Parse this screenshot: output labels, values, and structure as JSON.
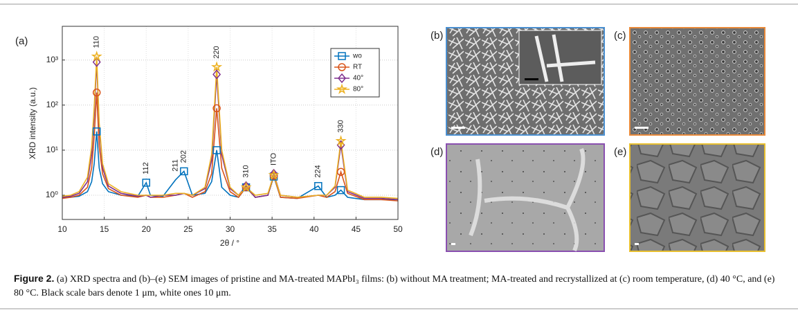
{
  "chart_data": {
    "type": "line",
    "panel_label": "(a)",
    "xlabel": "2θ / °",
    "ylabel": "XRD intensity (a.u.)",
    "x": [
      10,
      11,
      12,
      13,
      13.5,
      13.8,
      14.1,
      14.4,
      14.8,
      15.5,
      17,
      19,
      20,
      20.5,
      22,
      23.5,
      24.5,
      25.5,
      27,
      27.8,
      28.4,
      29,
      30,
      31,
      31.9,
      33,
      34.5,
      35.2,
      36,
      38,
      40.5,
      41.5,
      42.5,
      43.2,
      44,
      46,
      48,
      50
    ],
    "series": [
      {
        "name": "wo",
        "color": "#0072bd",
        "marker": "square",
        "values": [
          0.9,
          0.9,
          0.95,
          1.2,
          2,
          5,
          26,
          4,
          1.8,
          1.2,
          1,
          0.95,
          1.9,
          1,
          0.95,
          2.2,
          3.4,
          1,
          1.1,
          2,
          10,
          1.5,
          1,
          0.9,
          1.5,
          0.9,
          1,
          2.6,
          0.9,
          0.85,
          1.6,
          0.9,
          1,
          1.3,
          0.9,
          0.8,
          0.8,
          0.8
        ]
      },
      {
        "name": "RT",
        "color": "#d95319",
        "marker": "circle",
        "values": [
          0.85,
          0.9,
          1,
          1.5,
          4,
          20,
          190,
          12,
          3,
          1.4,
          1,
          0.9,
          1,
          0.9,
          0.9,
          1,
          1.1,
          0.9,
          1.2,
          3,
          85,
          4,
          1.2,
          0.9,
          1.5,
          0.9,
          1,
          2.7,
          0.9,
          0.85,
          1,
          0.9,
          1.2,
          3.3,
          1.1,
          0.8,
          0.8,
          0.75
        ]
      },
      {
        "name": "40°",
        "color": "#7e2f8e",
        "marker": "diamond",
        "values": [
          0.9,
          0.95,
          1.1,
          2,
          8,
          60,
          900,
          30,
          4,
          1.6,
          1.1,
          0.95,
          1,
          0.9,
          1,
          1,
          1.1,
          1,
          1.4,
          6,
          480,
          8,
          1.4,
          1,
          1.6,
          0.9,
          1,
          3,
          1,
          0.9,
          1,
          1,
          1.5,
          13,
          1.2,
          0.85,
          0.85,
          0.8
        ]
      },
      {
        "name": "80°",
        "color": "#edb120",
        "marker": "star",
        "values": [
          0.95,
          1,
          1.2,
          2.5,
          12,
          90,
          1200,
          40,
          5,
          1.8,
          1.2,
          1,
          1,
          1,
          1,
          1.1,
          1.1,
          1,
          1.5,
          8,
          700,
          10,
          1.5,
          1,
          1.5,
          1,
          1.1,
          2.8,
          1,
          0.9,
          1,
          1,
          1.6,
          16,
          1.3,
          0.9,
          0.9,
          0.85
        ]
      }
    ],
    "annotations": [
      {
        "text": "110",
        "x": 14.1
      },
      {
        "text": "112",
        "x": 20
      },
      {
        "text": "211",
        "x": 23.5
      },
      {
        "text": "202",
        "x": 24.5
      },
      {
        "text": "220",
        "x": 28.4
      },
      {
        "text": "310",
        "x": 31.9
      },
      {
        "text": "ITO",
        "x": 35.2
      },
      {
        "text": "224",
        "x": 40.5
      },
      {
        "text": "330",
        "x": 43.2
      }
    ],
    "xlim": [
      10,
      50
    ],
    "xticks": [
      10,
      15,
      20,
      25,
      30,
      35,
      40,
      45,
      50
    ],
    "ylim": [
      0.29,
      5600
    ],
    "yscale": "log",
    "yticks": [
      {
        "value": 1,
        "label": "10⁰"
      },
      {
        "value": 10,
        "label": "10¹"
      },
      {
        "value": 100,
        "label": "10²"
      },
      {
        "value": 1000,
        "label": "10³"
      }
    ],
    "grid": true,
    "legend": "upper right"
  },
  "sem_panels": [
    {
      "label": "(b)"
    },
    {
      "label": "(c)"
    },
    {
      "label": "(d)"
    },
    {
      "label": "(e)"
    }
  ],
  "caption": {
    "label": "Figure 2.",
    "text": "(a) XRD spectra and (b)–(e) SEM images of pristine and MA-treated MAPbI₃ films: (b) without MA treatment; MA-treated and recrystallized at (c) room temperature, (d) 40 °C, and (e) 80 °C. Black scale bars denote 1 μm, white ones 10 μm."
  }
}
